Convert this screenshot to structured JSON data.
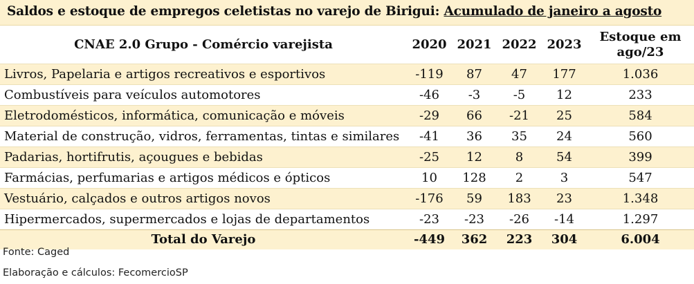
{
  "title": {
    "prefix": "Saldos e estoque de empregos celetistas no varejo de Birigui: ",
    "underlined": "Acumulado de janeiro a agosto"
  },
  "table": {
    "header": {
      "name": "CNAE 2.0 Grupo - Comércio varejista",
      "y2020": "2020",
      "y2021": "2021",
      "y2022": "2022",
      "y2023": "2023",
      "stock_line1": "Estoque em",
      "stock_line2": "ago/23"
    },
    "rows": [
      {
        "name": "Livros, Papelaria e artigos recreativos e esportivos",
        "y2020": "-119",
        "y2021": "87",
        "y2022": "47",
        "y2023": "177",
        "stock": "1.036"
      },
      {
        "name": "Combustíveis para veículos automotores",
        "y2020": "-46",
        "y2021": "-3",
        "y2022": "-5",
        "y2023": "12",
        "stock": "233"
      },
      {
        "name": "Eletrodomésticos, informática, comunicação e móveis",
        "y2020": "-29",
        "y2021": "66",
        "y2022": "-21",
        "y2023": "25",
        "stock": "584"
      },
      {
        "name": "Material de construção, vidros, ferramentas, tintas e similares",
        "y2020": "-41",
        "y2021": "36",
        "y2022": "35",
        "y2023": "24",
        "stock": "560"
      },
      {
        "name": "Padarias, hortifrutis, açougues e bebidas",
        "y2020": "-25",
        "y2021": "12",
        "y2022": "8",
        "y2023": "54",
        "stock": "399"
      },
      {
        "name": "Farmácias, perfumarias e artigos médicos e ópticos",
        "y2020": "10",
        "y2021": "128",
        "y2022": "2",
        "y2023": "3",
        "stock": "547"
      },
      {
        "name": "Vestuário, calçados e outros artigos novos",
        "y2020": "-176",
        "y2021": "59",
        "y2022": "183",
        "y2023": "23",
        "stock": "1.348"
      },
      {
        "name": "Hipermercados, supermercados e lojas de departamentos",
        "y2020": "-23",
        "y2021": "-23",
        "y2022": "-26",
        "y2023": "-14",
        "stock": "1.297"
      }
    ],
    "total": {
      "name": "Total do Varejo",
      "y2020": "-449",
      "y2021": "362",
      "y2022": "223",
      "y2023": "304",
      "stock": "6.004"
    }
  },
  "footer": {
    "source": "Fonte: Caged",
    "credits": "Elaboração e cálculos: FecomercioSP"
  },
  "colors": {
    "band": "#fdf1cf",
    "text": "#111111"
  }
}
